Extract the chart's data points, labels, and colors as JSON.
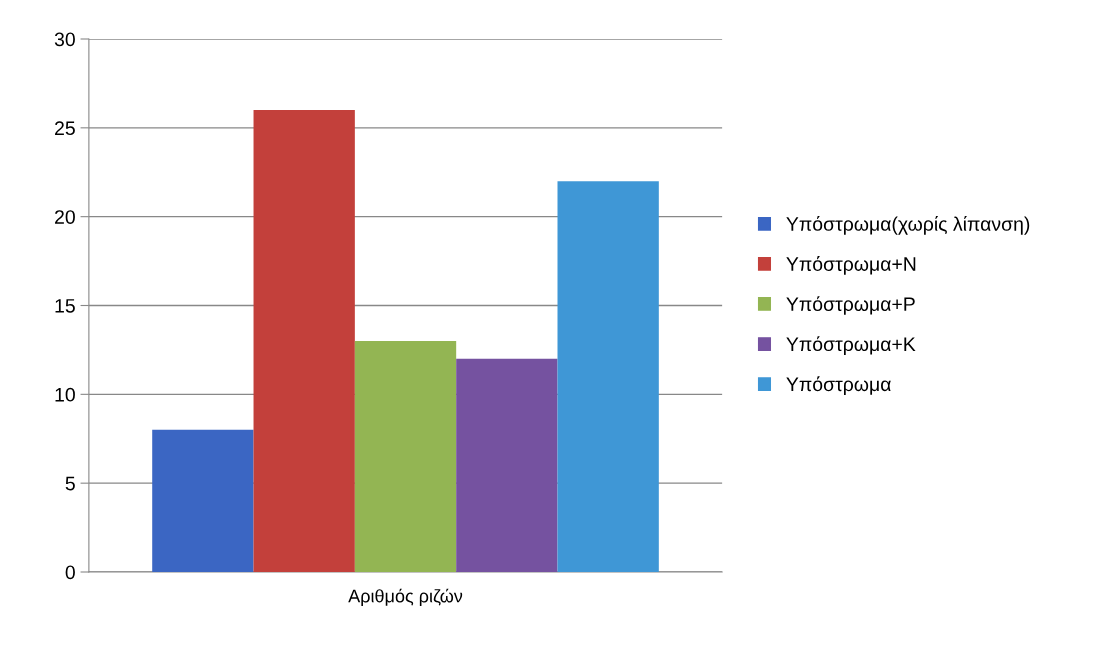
{
  "chart_data": {
    "type": "bar",
    "categories": [
      "Αριθμός ριζών"
    ],
    "series": [
      {
        "name": "Υπόστρωμα(χωρίς λίπανση)",
        "color": "#3b66c3",
        "values": [
          8
        ]
      },
      {
        "name": "Υπόστρωμα+N",
        "color": "#c3403b",
        "values": [
          26
        ]
      },
      {
        "name": "Υπόστρωμα+P",
        "color": "#93b553",
        "values": [
          13
        ]
      },
      {
        "name": "Υπόστρωμα+K",
        "color": "#7552a0",
        "values": [
          12
        ]
      },
      {
        "name": "Υπόστρωμα",
        "color": "#3f97d6",
        "values": [
          22
        ]
      }
    ],
    "ylim": [
      0,
      30
    ],
    "yticks": [
      0,
      5,
      10,
      15,
      20,
      25,
      30
    ],
    "grid": "y",
    "legend": "right"
  }
}
